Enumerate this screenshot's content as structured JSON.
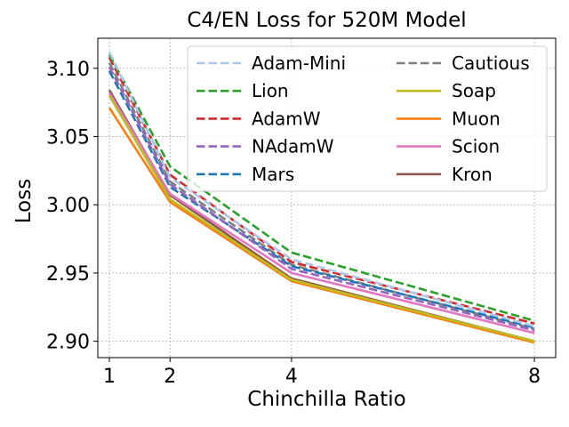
{
  "chart_data": {
    "type": "line",
    "title": "C4/EN Loss for 520M Model",
    "xlabel": "Chinchilla Ratio",
    "ylabel": "Loss",
    "x": [
      1,
      2,
      4,
      8
    ],
    "xticks": [
      "1",
      "2",
      "4",
      "8"
    ],
    "ylim": [
      2.888,
      3.122
    ],
    "yticks": [
      "2.90",
      "2.95",
      "3.00",
      "3.05",
      "3.10"
    ],
    "grid": true,
    "legend_position": "top-right",
    "legend_columns": 2,
    "series": [
      {
        "name": "Adam-Mini",
        "color": "#aec7e8",
        "style": "dashed",
        "values": [
          3.112,
          3.02,
          2.96,
          2.911
        ]
      },
      {
        "name": "Lion",
        "color": "#2ca02c",
        "style": "dashed",
        "values": [
          3.11,
          3.028,
          2.965,
          2.915
        ]
      },
      {
        "name": "AdamW",
        "color": "#d62728",
        "style": "dashed",
        "values": [
          3.108,
          3.022,
          2.958,
          2.913
        ]
      },
      {
        "name": "NAdamW",
        "color": "#9467bd",
        "style": "dashed",
        "values": [
          3.101,
          3.015,
          2.953,
          2.908
        ]
      },
      {
        "name": "Mars",
        "color": "#1f77b4",
        "style": "dashed",
        "values": [
          3.098,
          3.013,
          2.955,
          2.91
        ]
      },
      {
        "name": "Cautious",
        "color": "#7f7f7f",
        "style": "dashed",
        "values": [
          3.104,
          3.017,
          2.956,
          2.909
        ]
      },
      {
        "name": "Soap",
        "color": "#bcbd22",
        "style": "solid",
        "values": [
          3.08,
          3.004,
          2.945,
          2.9
        ]
      },
      {
        "name": "Muon",
        "color": "#ff7f0e",
        "style": "solid",
        "values": [
          3.071,
          3.002,
          2.944,
          2.899
        ]
      },
      {
        "name": "Scion",
        "color": "#e377c2",
        "style": "solid",
        "values": [
          3.082,
          3.008,
          2.95,
          2.906
        ]
      },
      {
        "name": "Kron",
        "color": "#8c564b",
        "style": "solid",
        "values": [
          3.084,
          3.007,
          2.946,
          2.9
        ]
      }
    ]
  }
}
